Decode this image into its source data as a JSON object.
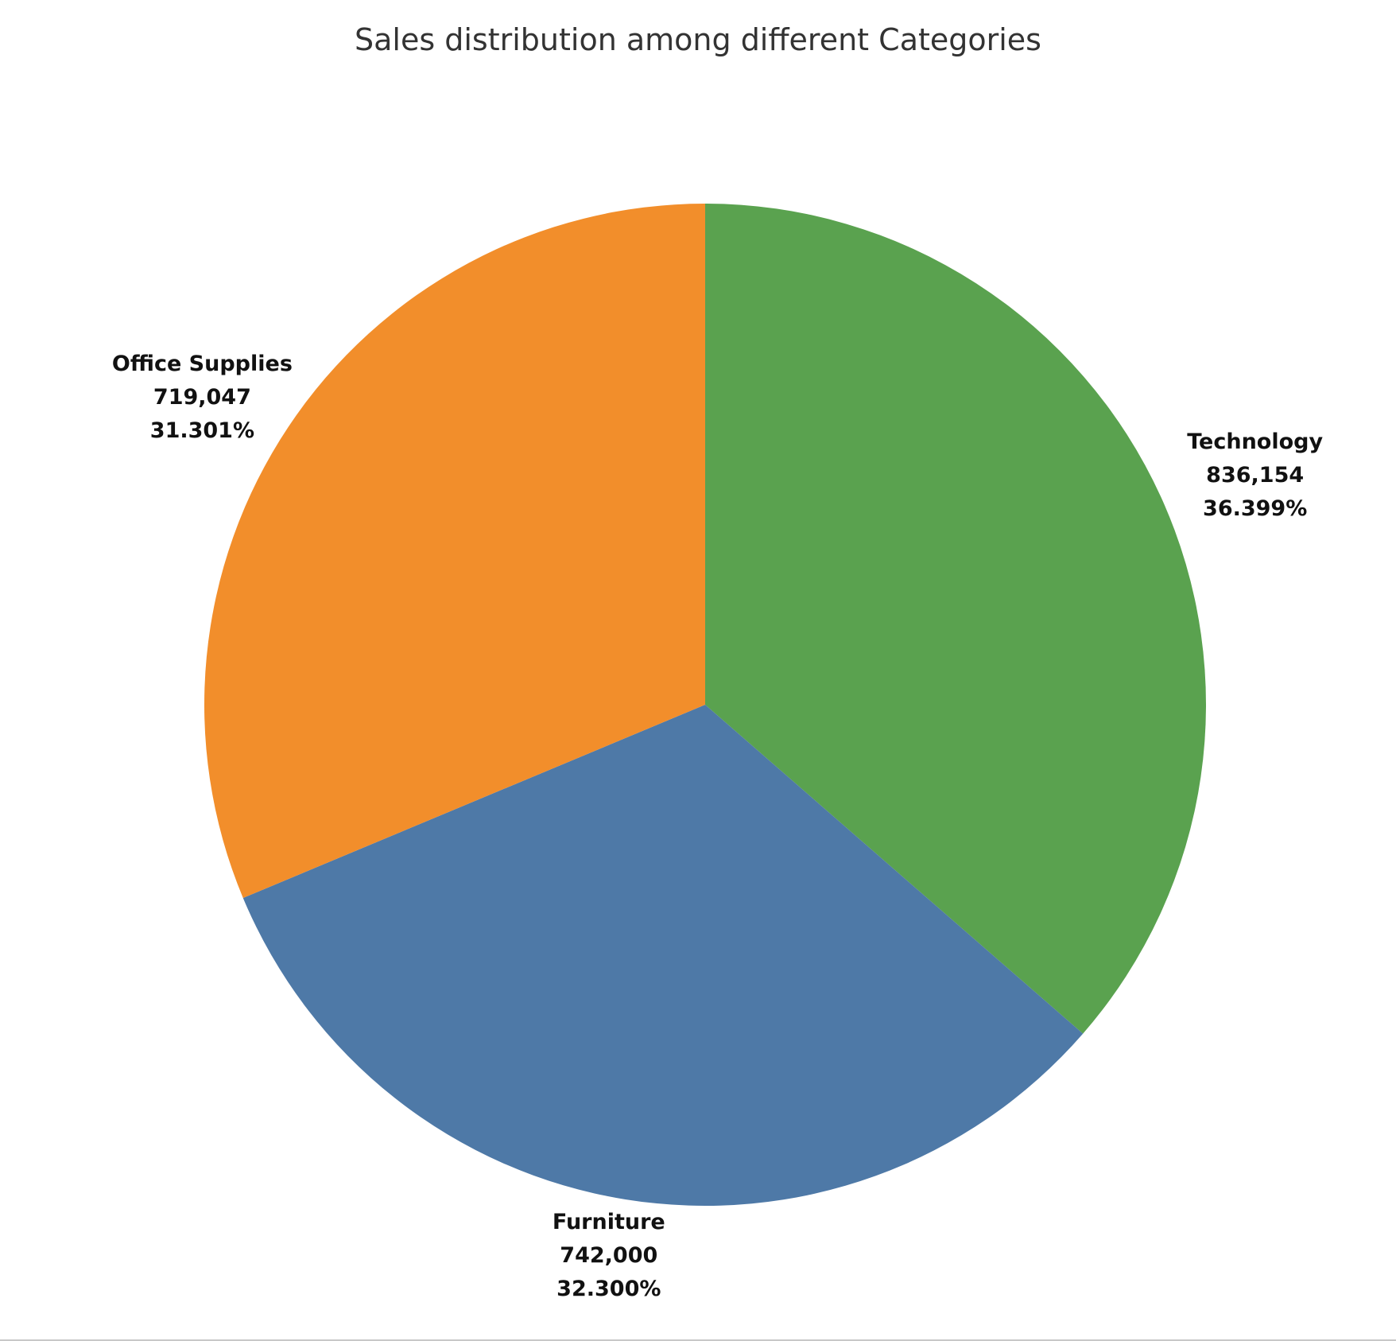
{
  "chart_data": {
    "type": "pie",
    "title": "Sales distribution among different Categories",
    "slices": [
      {
        "label": "Technology",
        "value": 836154,
        "value_text": "836,154",
        "percent_text": "36.399%",
        "color": "#5aa24f"
      },
      {
        "label": "Furniture",
        "value": 742000,
        "value_text": "742,000",
        "percent_text": "32.300%",
        "color": "#4e79a7"
      },
      {
        "label": "Office Supplies",
        "value": 719047,
        "value_text": "719,047",
        "percent_text": "31.301%",
        "color": "#f28e2b"
      }
    ],
    "start_angle": "12 o'clock",
    "direction": "clockwise",
    "legend": "none",
    "labels": "outside"
  }
}
